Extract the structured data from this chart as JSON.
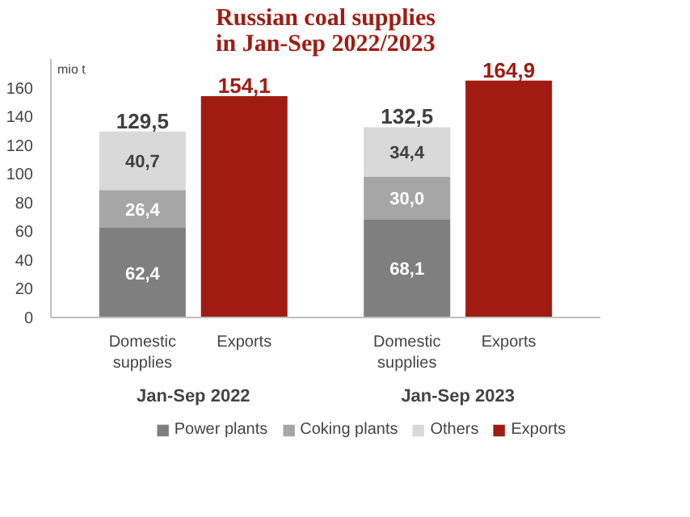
{
  "chart_data": {
    "type": "bar",
    "title": "Russian coal supplies\nin Jan-Sep 2022/2023",
    "ylabel": "mio t",
    "stacked": true,
    "categories": [
      "Domestic supplies",
      "Exports",
      "Domestic supplies",
      "Exports"
    ],
    "series": [
      {
        "name": "Power plants",
        "color": "#7f7f7f",
        "values": [
          62.4,
          null,
          68.1,
          null
        ],
        "value_labels": [
          "62,4",
          null,
          "68,1",
          null
        ]
      },
      {
        "name": "Coking plants",
        "color": "#a6a6a6",
        "values": [
          26.4,
          null,
          30.0,
          null
        ],
        "value_labels": [
          "26,4",
          null,
          "30,0",
          null
        ]
      },
      {
        "name": "Others",
        "color": "#d9d9d9",
        "values": [
          40.7,
          null,
          34.4,
          null
        ],
        "value_labels": [
          "40,7",
          null,
          "34,4",
          null
        ]
      },
      {
        "name": "Exports",
        "color": "#a01c12",
        "values": [
          null,
          154.1,
          null,
          164.9
        ]
      }
    ],
    "totals": [
      "129,5",
      "154,1",
      "132,5",
      "164,9"
    ],
    "annotations": [
      "Jan-Sep 2022",
      "Jan-Sep 2023"
    ],
    "ylim": [
      0,
      180
    ],
    "yticks": [
      0,
      20,
      40,
      60,
      80,
      100,
      120,
      140,
      160
    ],
    "grid": false,
    "legend": "bottom"
  }
}
